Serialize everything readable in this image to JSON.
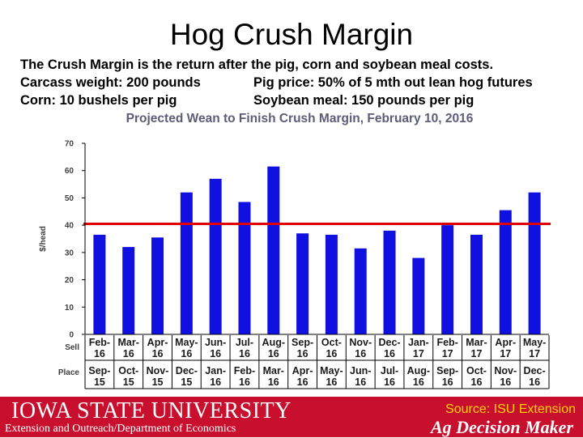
{
  "slide": {
    "title": "Hog Crush Margin",
    "intro": "The Crush Margin is the return after the pig, corn and soybean meal costs.",
    "specs": [
      {
        "left": "Carcass weight:  200 pounds",
        "right": "Pig price:  50% of 5 mth out lean hog futures"
      },
      {
        "left": "Corn:  10 bushels per pig",
        "right": "Soybean meal:  150 pounds per pig"
      }
    ]
  },
  "footer": {
    "logo": "IOWA STATE UNIVERSITY",
    "department": "Extension and Outreach/Department of Economics",
    "source": "Source: ISU Extension",
    "brand": "Ag Decision Maker"
  },
  "chart_data": {
    "type": "bar",
    "title": "Projected Wean to Finish Crush Margin, February 10, 2016",
    "ylabel": "$/head",
    "ylim": [
      0,
      70
    ],
    "yticks": [
      0,
      10,
      20,
      30,
      40,
      50,
      60,
      70
    ],
    "grid": false,
    "bar_color": "#1010e0",
    "reference_line": {
      "value": 40.5,
      "color": "#e00000"
    },
    "row_labels": [
      "Sell",
      "Place"
    ],
    "categories": [
      {
        "sell": [
          "Feb-",
          "16"
        ],
        "place": [
          "Sep-",
          "15"
        ]
      },
      {
        "sell": [
          "Mar-",
          "16"
        ],
        "place": [
          "Oct-",
          "15"
        ]
      },
      {
        "sell": [
          "Apr-",
          "16"
        ],
        "place": [
          "Nov-",
          "15"
        ]
      },
      {
        "sell": [
          "May-",
          "16"
        ],
        "place": [
          "Dec-",
          "15"
        ]
      },
      {
        "sell": [
          "Jun-",
          "16"
        ],
        "place": [
          "Jan-",
          "16"
        ]
      },
      {
        "sell": [
          "Jul-",
          "16"
        ],
        "place": [
          "Feb-",
          "16"
        ]
      },
      {
        "sell": [
          "Aug-",
          "16"
        ],
        "place": [
          "Mar-",
          "16"
        ]
      },
      {
        "sell": [
          "Sep-",
          "16"
        ],
        "place": [
          "Apr-",
          "16"
        ]
      },
      {
        "sell": [
          "Oct-",
          "16"
        ],
        "place": [
          "May-",
          "16"
        ]
      },
      {
        "sell": [
          "Nov-",
          "16"
        ],
        "place": [
          "Jun-",
          "16"
        ]
      },
      {
        "sell": [
          "Dec-",
          "16"
        ],
        "place": [
          "Jul-",
          "16"
        ]
      },
      {
        "sell": [
          "Jan-",
          "17"
        ],
        "place": [
          "Aug-",
          "16"
        ]
      },
      {
        "sell": [
          "Feb-",
          "17"
        ],
        "place": [
          "Sep-",
          "16"
        ]
      },
      {
        "sell": [
          "Mar-",
          "17"
        ],
        "place": [
          "Oct-",
          "16"
        ]
      },
      {
        "sell": [
          "Apr-",
          "17"
        ],
        "place": [
          "Nov-",
          "16"
        ]
      },
      {
        "sell": [
          "May-",
          "17"
        ],
        "place": [
          "Dec-",
          "16"
        ]
      }
    ],
    "values": [
      36.5,
      32,
      35.5,
      52,
      57,
      48.5,
      61.5,
      37,
      36.5,
      31.5,
      38,
      28,
      40,
      36.5,
      45.5,
      52
    ]
  }
}
